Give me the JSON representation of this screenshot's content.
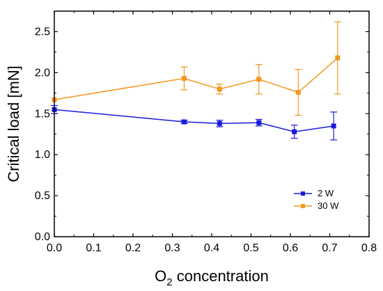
{
  "chart_data": {
    "type": "line",
    "xlabel_main": "O",
    "xlabel_sub": "2",
    "xlabel_rest": " concentration",
    "ylabel": "Critical load [mN]",
    "xlim": [
      0.0,
      0.8
    ],
    "ylim": [
      0.0,
      2.75
    ],
    "xticks": [
      "0.0",
      "0.1",
      "0.2",
      "0.3",
      "0.4",
      "0.5",
      "0.6",
      "0.7",
      "0.8"
    ],
    "yticks": [
      "0.0",
      "0.5",
      "1.0",
      "1.5",
      "2.0",
      "2.5"
    ],
    "grid": false,
    "legend_position": "bottom-right",
    "series": [
      {
        "name": "2 W",
        "color": "#1a1adc",
        "marker": "square",
        "points": [
          {
            "x": 0.0,
            "y": 1.55,
            "err": 0.05
          },
          {
            "x": 0.33,
            "y": 1.4,
            "err": 0.02
          },
          {
            "x": 0.42,
            "y": 1.38,
            "err": 0.04
          },
          {
            "x": 0.52,
            "y": 1.39,
            "err": 0.04
          },
          {
            "x": 0.61,
            "y": 1.28,
            "err": 0.08
          },
          {
            "x": 0.71,
            "y": 1.35,
            "err": 0.17
          }
        ]
      },
      {
        "name": "30 W",
        "color": "#f4961e",
        "marker": "square",
        "points": [
          {
            "x": 0.0,
            "y": 1.67,
            "err": 0.0
          },
          {
            "x": 0.33,
            "y": 1.93,
            "err": 0.14
          },
          {
            "x": 0.42,
            "y": 1.8,
            "err": 0.06
          },
          {
            "x": 0.52,
            "y": 1.92,
            "err": 0.18
          },
          {
            "x": 0.62,
            "y": 1.76,
            "err": 0.28
          },
          {
            "x": 0.72,
            "y": 2.18,
            "err": 0.44
          }
        ]
      }
    ]
  }
}
